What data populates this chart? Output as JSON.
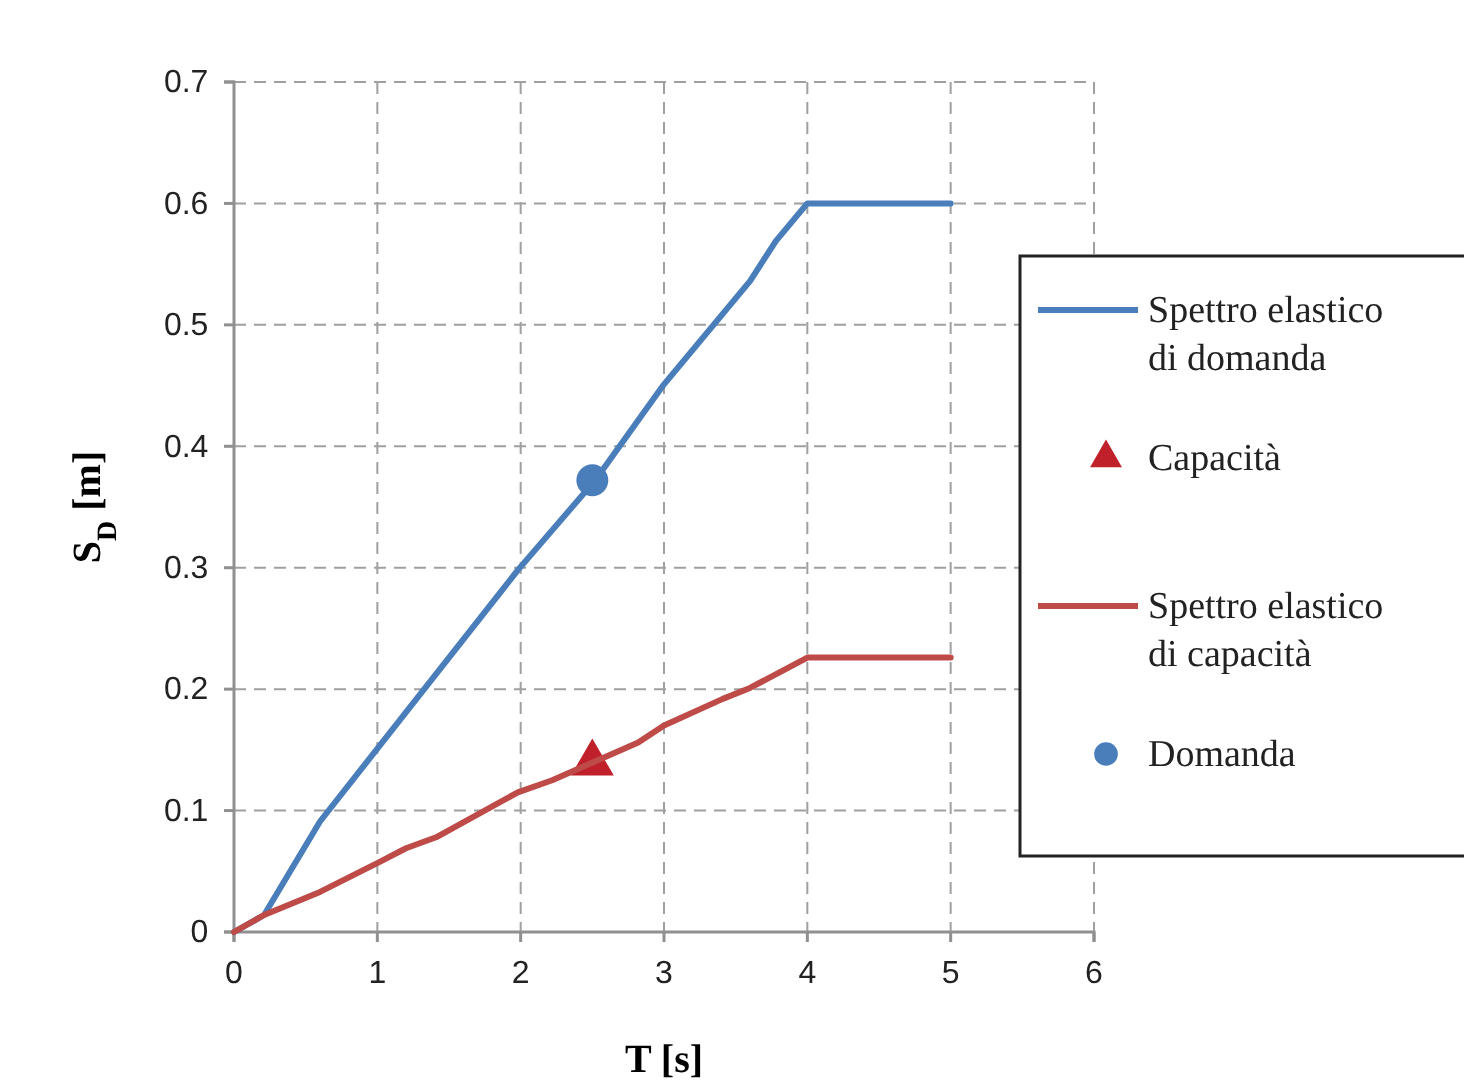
{
  "chart_data": {
    "type": "line",
    "xlabel": "T [s]",
    "ylabel": "S$_{D}$ [m]",
    "xlim": [
      0,
      6
    ],
    "ylim": [
      0,
      0.7
    ],
    "xticks": [
      0,
      1,
      2,
      3,
      4,
      5,
      6
    ],
    "yticks": [
      0,
      0.1,
      0.2,
      0.3,
      0.4,
      0.5,
      0.6,
      0.7
    ],
    "grid": true,
    "legend": "right",
    "line_style": "solid",
    "series": [
      {
        "name": "Spettro elastico di domanda",
        "type": "line",
        "color": "#4a7ebb",
        "marker": "none",
        "x": [
          0,
          0.21,
          0.6,
          1.98,
          2.52,
          3.0,
          3.6,
          3.78,
          4.0,
          5.0
        ],
        "values": [
          0,
          0.014,
          0.091,
          0.298,
          0.372,
          0.451,
          0.536,
          0.569,
          0.6,
          0.6
        ]
      },
      {
        "name": "Capacità",
        "type": "scatter",
        "color": "#c0202a",
        "marker": "triangle",
        "x": [
          2.5
        ],
        "values": [
          0.139
        ]
      },
      {
        "name": "Spettro elastico di capacità",
        "type": "line",
        "color": "#be4b48",
        "marker": "none",
        "x": [
          0,
          0.21,
          0.6,
          1.02,
          1.2,
          1.41,
          1.98,
          2.22,
          2.82,
          3.0,
          3.41,
          3.6,
          4.0,
          5.0
        ],
        "values": [
          0,
          0.014,
          0.033,
          0.058,
          0.069,
          0.078,
          0.115,
          0.125,
          0.156,
          0.17,
          0.192,
          0.201,
          0.226,
          0.226
        ]
      },
      {
        "name": "Domanda",
        "type": "scatter",
        "color": "#4a7ebb",
        "marker": "circle",
        "x": [
          2.5
        ],
        "values": [
          0.372
        ]
      }
    ]
  }
}
